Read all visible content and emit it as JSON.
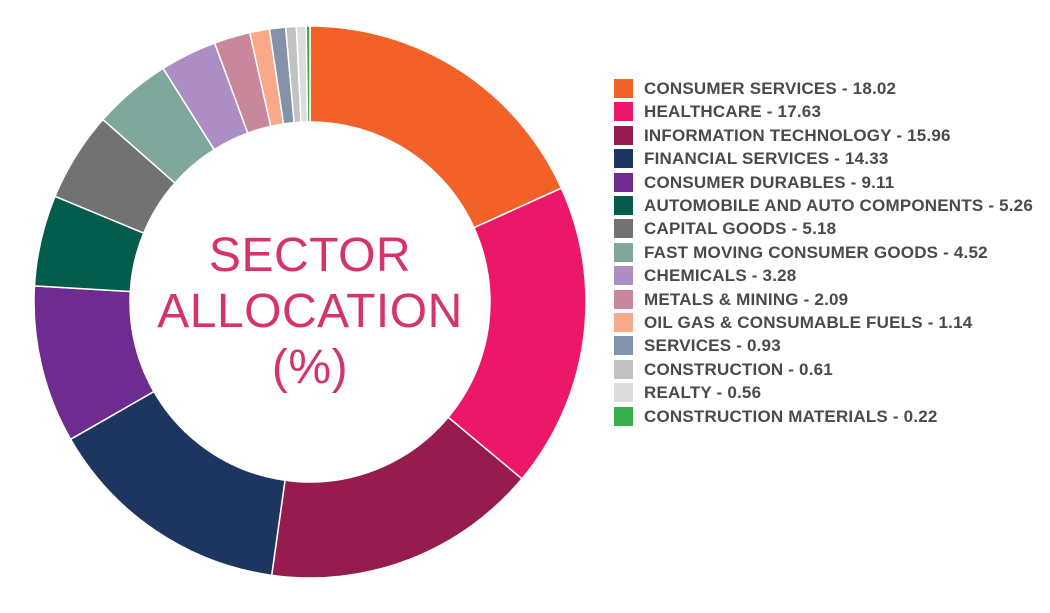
{
  "center_title": [
    "SECTOR",
    "ALLOCATION",
    "(%)"
  ],
  "chart_data": {
    "type": "pie",
    "style": "donut",
    "title": "SECTOR ALLOCATION (%)",
    "legend_position": "right",
    "slices": [
      {
        "label": "CONSUMER SERVICES - 18.02",
        "value": 18.02,
        "color": "#f26127"
      },
      {
        "label": "HEALTHCARE - 17.63",
        "value": 17.63,
        "color": "#ec1768"
      },
      {
        "label": "INFORMATION TECHNOLOGY - 15.96",
        "value": 15.96,
        "color": "#961b4e"
      },
      {
        "label": "FINANCIAL SERVICES - 14.33",
        "value": 14.33,
        "color": "#1d3660"
      },
      {
        "label": "CONSUMER DURABLES - 9.11",
        "value": 9.11,
        "color": "#6e2c91"
      },
      {
        "label": "AUTOMOBILE AND AUTO COMPONENTS - 5.26",
        "value": 5.26,
        "color": "#035c4c"
      },
      {
        "label": "CAPITAL GOODS - 5.18",
        "value": 5.18,
        "color": "#727272"
      },
      {
        "label": "FAST MOVING CONSUMER GOODS - 4.52",
        "value": 4.52,
        "color": "#7fa79b"
      },
      {
        "label": "CHEMICALS - 3.28",
        "value": 3.28,
        "color": "#ac8ec4"
      },
      {
        "label": "METALS & MINING - 2.09",
        "value": 2.09,
        "color": "#c8879a"
      },
      {
        "label": "OIL GAS & CONSUMABLE FUELS - 1.14",
        "value": 1.14,
        "color": "#f9a889"
      },
      {
        "label": "SERVICES - 0.93",
        "value": 0.93,
        "color": "#8392aa"
      },
      {
        "label": "CONSTRUCTION - 0.61",
        "value": 0.61,
        "color": "#c2c2c2"
      },
      {
        "label": "REALTY - 0.56",
        "value": 0.56,
        "color": "#dcdcdc"
      },
      {
        "label": "CONSTRUCTION MATERIALS - 0.22",
        "value": 0.22,
        "color": "#3aae4a"
      }
    ]
  }
}
